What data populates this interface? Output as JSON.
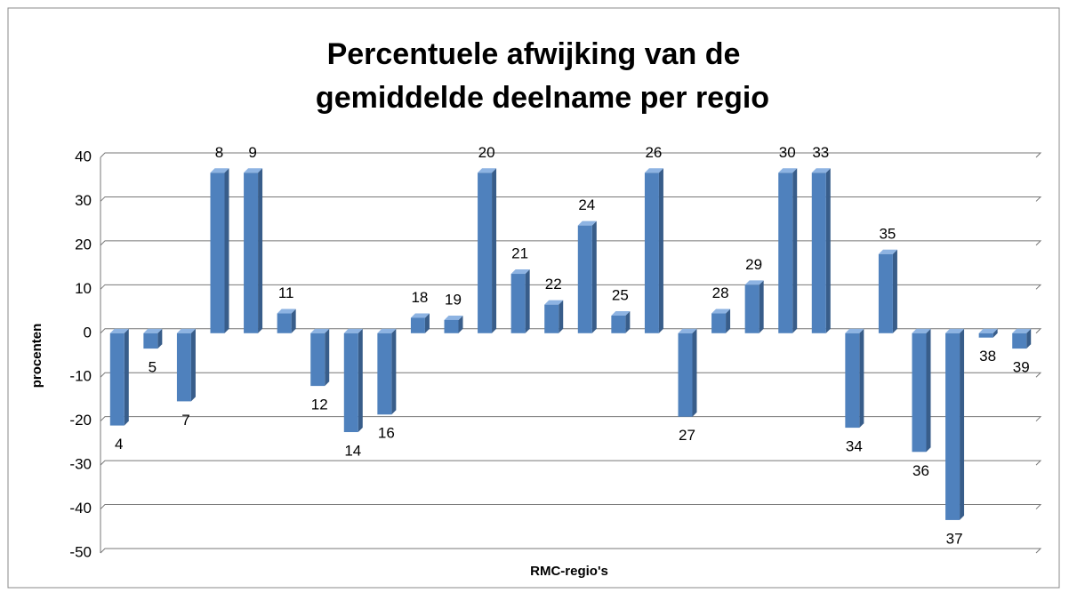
{
  "chart_data": {
    "type": "bar3d",
    "title": [
      "Percentuele afwijking van de",
      "gemiddelde deelname per regio"
    ],
    "y_label": "procenten",
    "x_label": "RMC-regio's",
    "categories": [
      "4",
      "5",
      "7",
      "8",
      "9",
      "11",
      "12",
      "14",
      "16",
      "18",
      "19",
      "20",
      "21",
      "22",
      "24",
      "25",
      "26",
      "27",
      "28",
      "29",
      "30",
      "33",
      "34",
      "35",
      "36",
      "37",
      "38",
      "39"
    ],
    "values": [
      -21,
      -3.5,
      -15.5,
      36.5,
      36.5,
      4.5,
      -12,
      -22.5,
      -18.5,
      3.5,
      3,
      36.5,
      13.5,
      6.5,
      24.5,
      4,
      36.5,
      -19,
      4.5,
      11,
      36.5,
      36.5,
      -21.5,
      18,
      -27,
      -42.5,
      -1,
      -3.5
    ],
    "color": "#4f81bd",
    "ylim": [
      -50,
      40
    ],
    "yticks": [
      -50,
      -40,
      -30,
      -20,
      -10,
      0,
      10,
      20,
      30,
      40
    ],
    "grid": true
  }
}
